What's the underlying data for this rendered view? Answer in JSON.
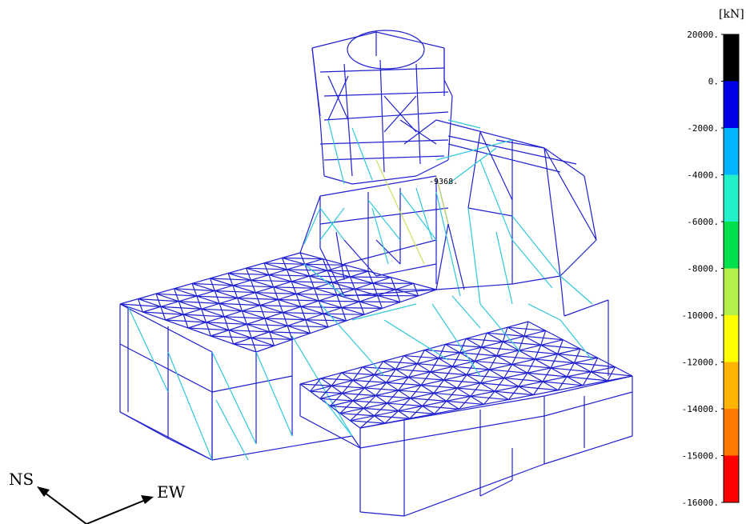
{
  "colorbar": {
    "unit": "[kN]",
    "ticks": [
      "20000.",
      "0.",
      "-2000.",
      "-4000.",
      "-6000.",
      "-8000.",
      "-10000.",
      "-12000.",
      "-14000.",
      "-15000.",
      "-16000."
    ],
    "bands": [
      "#000000",
      "#0000e6",
      "#00b4ff",
      "#22f0c8",
      "#00e04a",
      "#b4f04a",
      "#ffff00",
      "#ffb400",
      "#ff7800",
      "#ff0000"
    ]
  },
  "peak_label": "-9368.",
  "orientation": {
    "ns_label": "NS",
    "ew_label": "EW"
  },
  "model_colors": {
    "frame": "#2020d0",
    "brace": "#30c8d8",
    "yellow": "#c8e060"
  }
}
